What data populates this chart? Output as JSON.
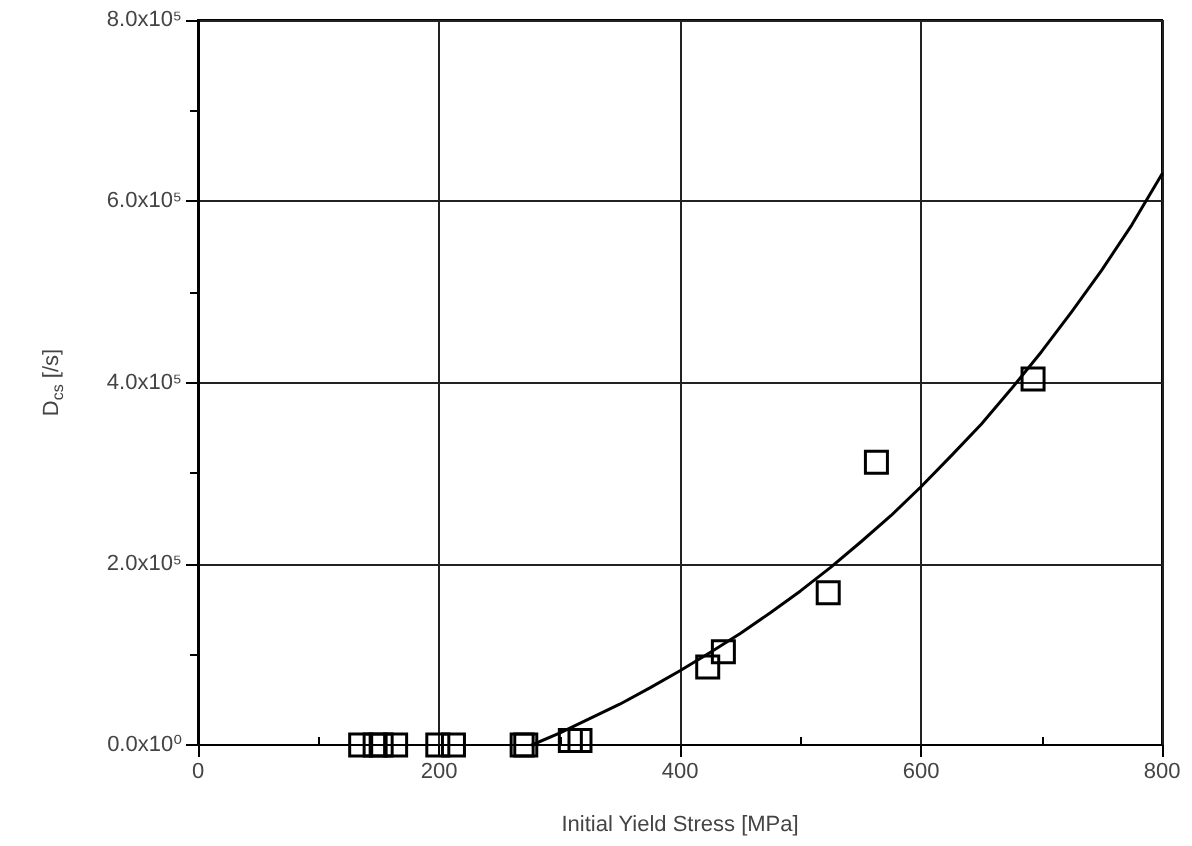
{
  "chart_data": {
    "type": "scatter",
    "xlabel": "Initial Yield Stress [MPa]",
    "ylabel": "D$_{cs}$ [/s]",
    "xlim": [
      0,
      800
    ],
    "ylim": [
      0,
      800000
    ],
    "xticks": [
      0,
      {
        "value": 100,
        "label": null
      },
      200,
      {
        "value": 300,
        "label": null
      },
      400,
      {
        "value": 500,
        "label": null
      },
      600,
      {
        "value": 700,
        "label": null
      },
      800
    ],
    "yticks": [
      {
        "value": 0,
        "label": "0.0x10⁰"
      },
      {
        "value": 100000,
        "label": null
      },
      {
        "value": 200000,
        "label": "2.0x10⁵"
      },
      {
        "value": 300000,
        "label": null
      },
      {
        "value": 400000,
        "label": "4.0x10⁵"
      },
      {
        "value": 500000,
        "label": null
      },
      {
        "value": 600000,
        "label": "6.0x10⁵"
      },
      {
        "value": 700000,
        "label": null
      },
      {
        "value": 800000,
        "label": "8.0x10⁵"
      }
    ],
    "grid": true,
    "marker": "square",
    "series": [
      {
        "color": "#000000",
        "x": [
          135,
          147,
          152,
          164,
          199,
          212,
          269,
          272,
          309,
          317,
          423,
          436,
          523,
          563,
          693
        ],
        "values": [
          0,
          0,
          0,
          0,
          0,
          0,
          0,
          0,
          5000,
          5000,
          86000,
          103000,
          168000,
          312000,
          404000
        ]
      },
      {
        "type": "line",
        "color": "#000000",
        "marker": "none",
        "line_style": "solid",
        "x": [
          277,
          300,
          325,
          350,
          375,
          400,
          425,
          450,
          475,
          500,
          525,
          550,
          575,
          600,
          625,
          650,
          675,
          700,
          725,
          750,
          775,
          800
        ],
        "values": [
          0,
          13000,
          29000,
          45000,
          63000,
          82000,
          102000,
          123000,
          146000,
          170000,
          196000,
          224000,
          253000,
          285000,
          319000,
          354000,
          393000,
          434000,
          478000,
          524000,
          574000,
          630000
        ]
      }
    ]
  }
}
